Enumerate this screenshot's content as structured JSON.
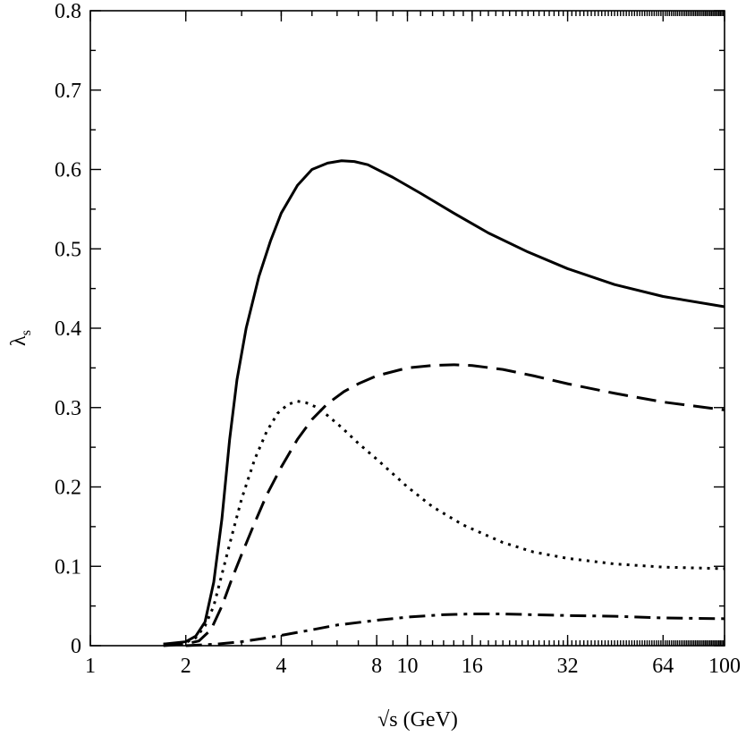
{
  "chart_data": {
    "type": "line",
    "title": "",
    "xlabel": "√s (GeV)",
    "ylabel": "λs",
    "ylabel_main": "λ",
    "ylabel_sub": "s",
    "xscale": "log2",
    "xlim": [
      1,
      100
    ],
    "ylim": [
      0,
      0.8
    ],
    "x_ticks": [
      1,
      2,
      4,
      8,
      10,
      16,
      32,
      64,
      100
    ],
    "x_tick_labels": [
      "1",
      "2",
      "4",
      "8",
      "10",
      "16",
      "32",
      "64",
      "100"
    ],
    "y_ticks": [
      0,
      0.1,
      0.2,
      0.3,
      0.4,
      0.5,
      0.6,
      0.7,
      0.8
    ],
    "y_tick_labels": [
      "0",
      "0.1",
      "0.2",
      "0.3",
      "0.4",
      "0.5",
      "0.6",
      "0.7",
      "0.8"
    ],
    "grid": false,
    "legend": "none",
    "series": [
      {
        "style": "solid",
        "x": [
          1.7,
          2.0,
          2.15,
          2.3,
          2.45,
          2.6,
          2.75,
          2.9,
          3.1,
          3.4,
          3.7,
          4.0,
          4.5,
          5.0,
          5.6,
          6.2,
          6.8,
          7.5,
          9,
          11,
          14,
          18,
          24,
          32,
          45,
          64,
          100
        ],
        "y": [
          0.002,
          0.005,
          0.012,
          0.03,
          0.08,
          0.16,
          0.26,
          0.335,
          0.4,
          0.465,
          0.51,
          0.545,
          0.58,
          0.6,
          0.608,
          0.611,
          0.61,
          0.606,
          0.59,
          0.57,
          0.545,
          0.52,
          0.496,
          0.475,
          0.455,
          0.44,
          0.427
        ]
      },
      {
        "style": "dashed",
        "x": [
          1.7,
          2.0,
          2.2,
          2.4,
          2.6,
          2.8,
          3.0,
          3.3,
          3.6,
          4.0,
          4.5,
          5.0,
          5.6,
          6.3,
          7.0,
          8,
          10,
          12,
          14,
          16,
          20,
          25,
          32,
          45,
          64,
          100
        ],
        "y": [
          0.0,
          0.002,
          0.006,
          0.02,
          0.05,
          0.085,
          0.115,
          0.155,
          0.19,
          0.225,
          0.26,
          0.285,
          0.305,
          0.32,
          0.33,
          0.34,
          0.35,
          0.353,
          0.354,
          0.353,
          0.348,
          0.34,
          0.33,
          0.318,
          0.307,
          0.297
        ]
      },
      {
        "style": "dotted",
        "x": [
          1.7,
          2.0,
          2.15,
          2.3,
          2.45,
          2.6,
          2.8,
          3.0,
          3.3,
          3.6,
          3.9,
          4.2,
          4.5,
          4.8,
          5.2,
          5.6,
          6.2,
          7.0,
          8,
          10,
          12,
          15,
          20,
          25,
          32,
          45,
          64,
          100
        ],
        "y": [
          0.002,
          0.004,
          0.01,
          0.025,
          0.05,
          0.09,
          0.14,
          0.185,
          0.235,
          0.27,
          0.293,
          0.304,
          0.308,
          0.306,
          0.3,
          0.29,
          0.275,
          0.255,
          0.235,
          0.2,
          0.175,
          0.152,
          0.13,
          0.118,
          0.11,
          0.103,
          0.099,
          0.097
        ]
      },
      {
        "style": "dash-dot",
        "x": [
          2.0,
          2.5,
          3.0,
          3.5,
          4.0,
          5.0,
          6.0,
          8,
          10,
          13,
          16,
          20,
          25,
          32,
          45,
          64,
          100
        ],
        "y": [
          0.0,
          0.002,
          0.005,
          0.009,
          0.013,
          0.02,
          0.026,
          0.032,
          0.036,
          0.039,
          0.04,
          0.04,
          0.039,
          0.038,
          0.037,
          0.035,
          0.034
        ]
      }
    ]
  }
}
